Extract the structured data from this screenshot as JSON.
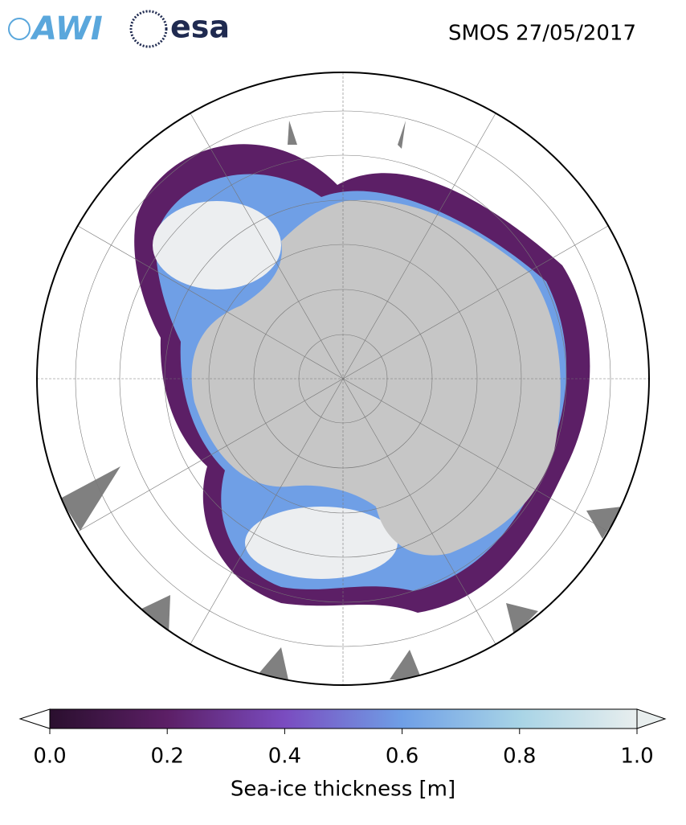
{
  "header": {
    "logos": {
      "awi": "AWI",
      "esa": "esa"
    },
    "title": "SMOS 27/05/2017"
  },
  "colorbar": {
    "label": "Sea-ice thickness [m]",
    "lim": [
      0,
      1
    ],
    "ticks": [
      {
        "value": 0,
        "label": "0.0"
      },
      {
        "value": 0.2,
        "label": "0.2"
      },
      {
        "value": 0.4,
        "label": "0.4"
      },
      {
        "value": 0.6,
        "label": "0.6"
      },
      {
        "value": 0.8,
        "label": "0.8"
      },
      {
        "value": 1,
        "label": "1.0"
      }
    ]
  }
}
